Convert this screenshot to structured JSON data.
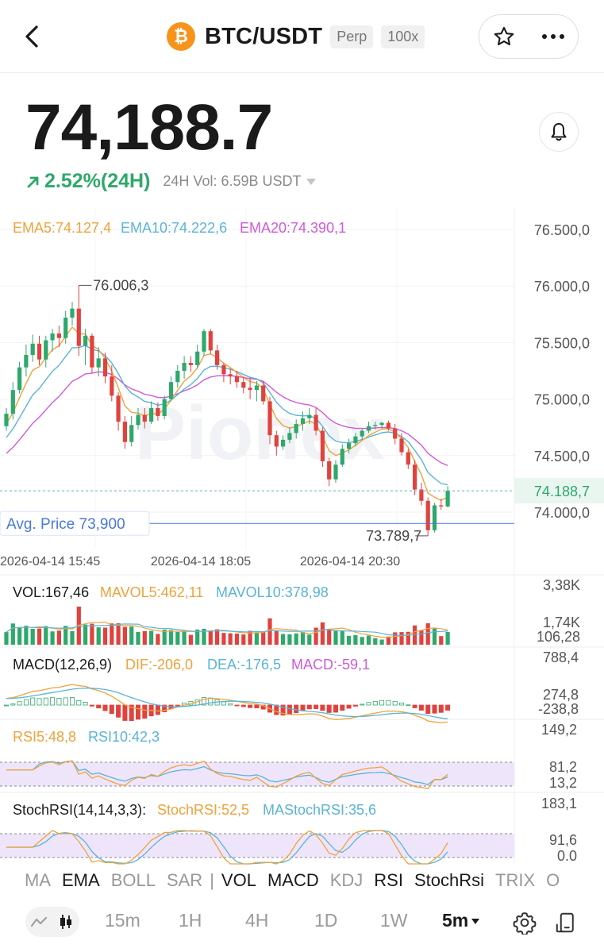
{
  "header": {
    "coin_symbol": "₿",
    "pair": "BTC/USDT",
    "tags": [
      "Perp",
      "100x"
    ],
    "icons": [
      "back-arrow-icon",
      "star-icon",
      "more-icon"
    ]
  },
  "ticker": {
    "price": "74,188.7",
    "change": "2.52%(24H)",
    "volume_24h": "24H Vol: 6.59B USDT",
    "change_color": "#2ea86b"
  },
  "chart_data": {
    "type": "candlestick",
    "interval": "5m",
    "watermark": "Pionex",
    "y_axis_labels": [
      "76.500,0",
      "76.000,0",
      "75.500,0",
      "75.000,0",
      "74.500,0",
      "74.000,0"
    ],
    "y_axis_values": [
      76500,
      76000,
      75500,
      75000,
      74500,
      74000
    ],
    "x_axis_labels": [
      "2026-04-14 15:45",
      "2026-04-14 18:05",
      "2026-04-14 20:30"
    ],
    "legend": {
      "ema5": "EMA5:74.127,4",
      "ema10": "EMA10:74.222,6",
      "ema20": "EMA20:74.390,1"
    },
    "high_label": "76.006,3",
    "low_label": "73.789,7",
    "high_value": 76006.3,
    "low_value": 73789.7,
    "last_price": 74188.7,
    "last_price_label": "74.188,7",
    "avg_price": 73900,
    "avg_price_label": "Avg. Price 73,900",
    "ohlc": [
      [
        74760,
        74920,
        74720,
        74870
      ],
      [
        74870,
        75150,
        74820,
        75080
      ],
      [
        75080,
        75330,
        75050,
        75280
      ],
      [
        75280,
        75480,
        75200,
        75390
      ],
      [
        75390,
        75570,
        75330,
        75490
      ],
      [
        75490,
        75560,
        75300,
        75350
      ],
      [
        75350,
        75560,
        75280,
        75520
      ],
      [
        75520,
        75620,
        75420,
        75580
      ],
      [
        75580,
        75650,
        75460,
        75540
      ],
      [
        75540,
        75780,
        75490,
        75720
      ],
      [
        75720,
        75860,
        75650,
        75800
      ],
      [
        75800,
        76006,
        75380,
        75470
      ],
      [
        75470,
        75620,
        75300,
        75560
      ],
      [
        75560,
        75580,
        75230,
        75280
      ],
      [
        75280,
        75460,
        75200,
        75360
      ],
      [
        75360,
        75410,
        75140,
        75200
      ],
      [
        75200,
        75300,
        74980,
        75030
      ],
      [
        75030,
        75060,
        74720,
        74800
      ],
      [
        74800,
        74850,
        74560,
        74620
      ],
      [
        74620,
        74850,
        74580,
        74770
      ],
      [
        74770,
        74920,
        74730,
        74860
      ],
      [
        74860,
        74920,
        74740,
        74800
      ],
      [
        74800,
        74980,
        74780,
        74920
      ],
      [
        74920,
        74970,
        74810,
        74850
      ],
      [
        74850,
        75030,
        74820,
        75000
      ],
      [
        75000,
        75200,
        74980,
        75150
      ],
      [
        75150,
        75300,
        75100,
        75250
      ],
      [
        75250,
        75380,
        75180,
        75320
      ],
      [
        75320,
        75380,
        75240,
        75300
      ],
      [
        75300,
        75480,
        75270,
        75420
      ],
      [
        75420,
        75620,
        75380,
        75600
      ],
      [
        75600,
        75620,
        75400,
        75430
      ],
      [
        75430,
        75480,
        75260,
        75300
      ],
      [
        75300,
        75320,
        75150,
        75220
      ],
      [
        75220,
        75270,
        75130,
        75200
      ],
      [
        75200,
        75250,
        75100,
        75150
      ],
      [
        75150,
        75200,
        75050,
        75100
      ],
      [
        75100,
        75190,
        75000,
        75080
      ],
      [
        75080,
        75160,
        74980,
        75120
      ],
      [
        75120,
        75160,
        74950,
        74980
      ],
      [
        74980,
        75020,
        74600,
        74680
      ],
      [
        74680,
        74720,
        74500,
        74580
      ],
      [
        74580,
        74680,
        74550,
        74640
      ],
      [
        74640,
        74750,
        74610,
        74700
      ],
      [
        74700,
        74820,
        74650,
        74780
      ],
      [
        74780,
        74890,
        74720,
        74830
      ],
      [
        74830,
        74920,
        74780,
        74860
      ],
      [
        74860,
        74920,
        74680,
        74720
      ],
      [
        74720,
        74750,
        74400,
        74450
      ],
      [
        74450,
        74480,
        74230,
        74290
      ],
      [
        74290,
        74460,
        74260,
        74420
      ],
      [
        74420,
        74600,
        74400,
        74560
      ],
      [
        74560,
        74650,
        74520,
        74610
      ],
      [
        74610,
        74700,
        74580,
        74670
      ],
      [
        74670,
        74740,
        74640,
        74720
      ],
      [
        74720,
        74800,
        74700,
        74760
      ],
      [
        74760,
        74800,
        74730,
        74770
      ],
      [
        74770,
        74800,
        74740,
        74790
      ],
      [
        74790,
        74810,
        74720,
        74740
      ],
      [
        74740,
        74780,
        74600,
        74650
      ],
      [
        74650,
        74700,
        74500,
        74530
      ],
      [
        74530,
        74560,
        74380,
        74420
      ],
      [
        74420,
        74460,
        74150,
        74200
      ],
      [
        74200,
        74260,
        74060,
        74100
      ],
      [
        74100,
        74130,
        73790,
        73840
      ],
      [
        73840,
        74080,
        73820,
        74060
      ],
      [
        74060,
        74120,
        74020,
        74050
      ],
      [
        74050,
        74230,
        74040,
        74188.7
      ]
    ],
    "vol_legend": {
      "vol": "VOL:167,46",
      "mavol5": "MAVOL5:462,11",
      "mavol10": "MAVOL10:378,98"
    },
    "vol_axis_labels": [
      "3,38K",
      "1,74K",
      "106,28"
    ],
    "macd_legend": {
      "name": "MACD(12,26,9)",
      "dif": "DIF:-206,0",
      "dea": "DEA:-176,5",
      "macd": "MACD:-59,1"
    },
    "macd_axis_labels": [
      "788,4",
      "274,8",
      "-238,8"
    ],
    "rsi_legend": {
      "rsi5": "RSI5:48,8",
      "rsi10": "RSI10:42,3"
    },
    "rsi_axis_labels": [
      "149,2",
      "81,2",
      "13,2"
    ],
    "stoch_legend": {
      "name": "StochRSI(14,14,3,3):",
      "stoch": "StochRSI:52,5",
      "mastoch": "MAStochRSI:35,6"
    },
    "stoch_axis_labels": [
      "183,1",
      "91,6",
      "0.0"
    ],
    "colors": {
      "up": "#2ea86b",
      "down": "#e0423e",
      "ema5": "#f0a23b",
      "ema10": "#5ab4d6",
      "ema20": "#d05ad8",
      "avg": "#4a78d8",
      "last": "#5aaec8",
      "band": "#efe5fb"
    }
  },
  "indicator_tabs": {
    "items": [
      "MA",
      "EMA",
      "BOLL",
      "SAR",
      "VOL",
      "MACD",
      "KDJ",
      "RSI",
      "StochRsi",
      "TRIX",
      "O"
    ],
    "active": [
      "EMA",
      "VOL",
      "MACD",
      "RSI",
      "StochRsi"
    ]
  },
  "timeframes": {
    "items": [
      "15m",
      "1H",
      "4H",
      "1D",
      "1W"
    ],
    "selected": "5m"
  }
}
